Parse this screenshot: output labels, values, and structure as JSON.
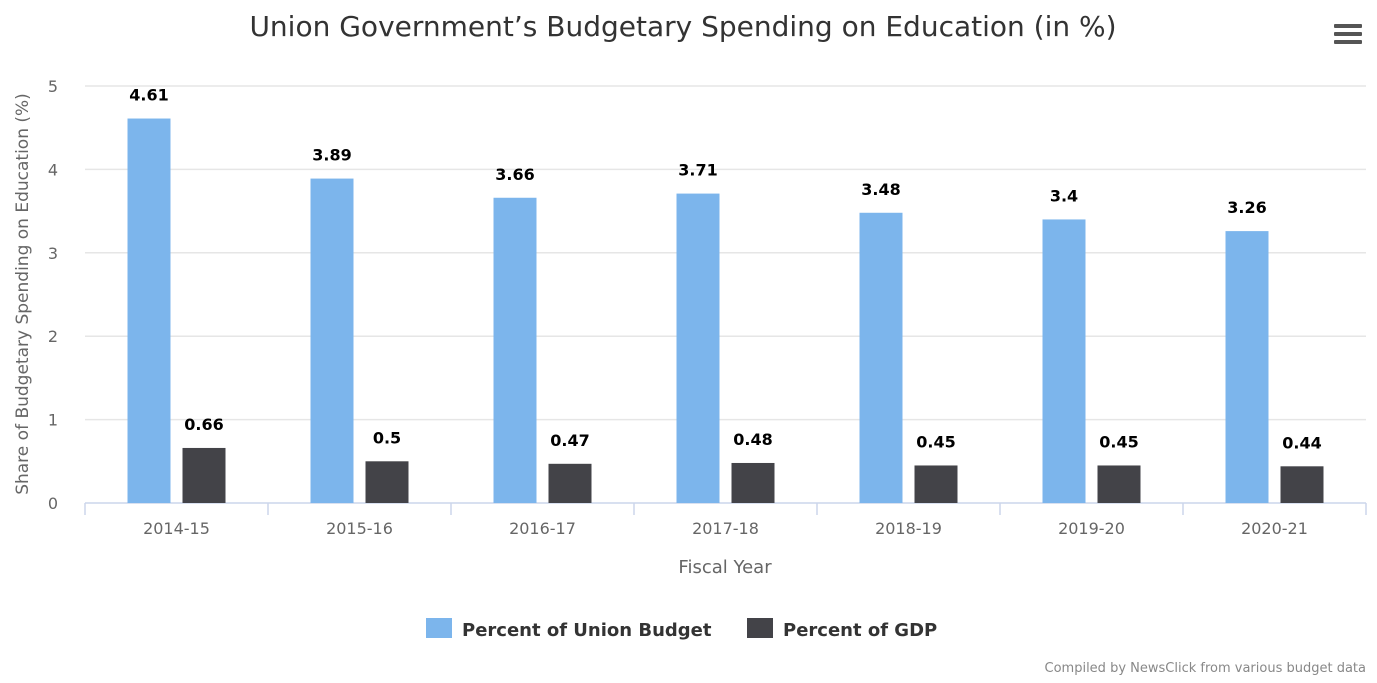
{
  "chart_data": {
    "type": "bar",
    "title": "Union Government’s Budgetary Spending on Education (in %)",
    "xlabel": "Fiscal Year",
    "ylabel": "Share of Budgetary Spending on Education (%)",
    "ylim": [
      0,
      5
    ],
    "yticks": [
      "0",
      "1",
      "2",
      "3",
      "4",
      "5"
    ],
    "grid": true,
    "legend_position": "bottom",
    "categories": [
      "2014-15",
      "2015-16",
      "2016-17",
      "2017-18",
      "2018-19",
      "2019-20",
      "2020-21"
    ],
    "series": [
      {
        "name": "Percent of Union Budget",
        "color": "#7cb5ec",
        "values": [
          4.61,
          3.89,
          3.66,
          3.71,
          3.48,
          3.4,
          3.26
        ]
      },
      {
        "name": "Percent of GDP",
        "color": "#434348",
        "values": [
          0.66,
          0.5,
          0.47,
          0.48,
          0.45,
          0.45,
          0.44
        ]
      }
    ],
    "credits": "Compiled by NewsClick from various budget data"
  },
  "menu_icon": "hamburger-menu-icon"
}
